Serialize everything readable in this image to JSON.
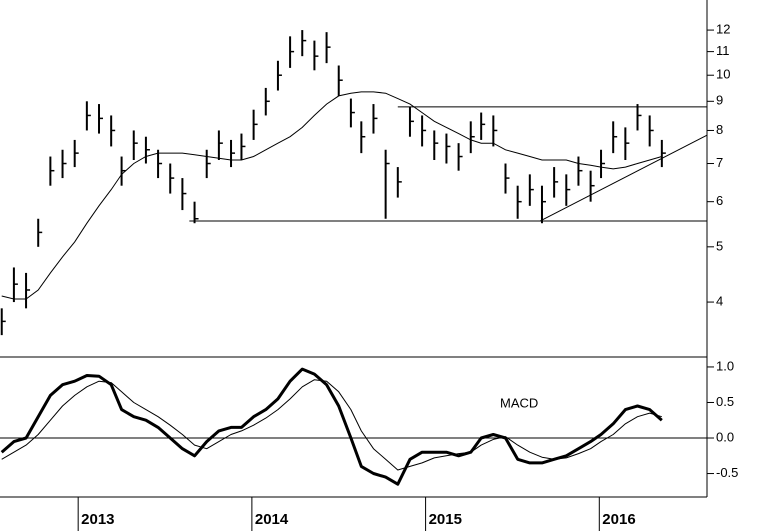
{
  "chart_data": [
    {
      "type": "ohlc",
      "log": true,
      "x": [
        2012.56,
        2012.63,
        2012.7,
        2012.77,
        2012.84,
        2012.91,
        2012.98,
        2013.05,
        2013.12,
        2013.19,
        2013.25,
        2013.32,
        2013.39,
        2013.46,
        2013.53,
        2013.6,
        2013.67,
        2013.74,
        2013.81,
        2013.88,
        2013.94,
        2014.01,
        2014.08,
        2014.15,
        2014.22,
        2014.29,
        2014.36,
        2014.43,
        2014.5,
        2014.57,
        2014.63,
        2014.7,
        2014.77,
        2014.84,
        2014.91,
        2014.98,
        2015.05,
        2015.12,
        2015.19,
        2015.26,
        2015.32,
        2015.39,
        2015.46,
        2015.53,
        2015.6,
        2015.67,
        2015.74,
        2015.81,
        2015.88,
        2015.95,
        2016.01,
        2016.08,
        2016.15,
        2016.22,
        2016.29,
        2016.36
      ],
      "high": [
        3.9,
        4.6,
        4.5,
        5.6,
        7.2,
        7.4,
        7.7,
        9.0,
        8.9,
        8.5,
        7.2,
        8.0,
        7.8,
        7.4,
        7.0,
        6.6,
        6.0,
        7.4,
        8.0,
        7.7,
        7.9,
        8.7,
        9.5,
        10.6,
        11.7,
        12.0,
        11.5,
        11.9,
        10.4,
        9.1,
        8.3,
        8.9,
        7.4,
        6.9,
        8.8,
        8.5,
        8.0,
        7.9,
        7.6,
        8.3,
        8.6,
        8.5,
        7.0,
        6.4,
        6.7,
        6.4,
        6.9,
        6.7,
        7.2,
        6.8,
        7.4,
        8.3,
        8.1,
        8.9,
        8.5,
        7.7
      ],
      "low": [
        3.5,
        4.0,
        3.9,
        5.0,
        6.4,
        6.6,
        6.9,
        8.0,
        7.9,
        7.5,
        6.4,
        7.1,
        7.0,
        6.6,
        6.2,
        5.8,
        5.5,
        6.6,
        7.1,
        6.9,
        7.1,
        7.7,
        8.5,
        9.4,
        10.3,
        10.8,
        10.2,
        10.5,
        9.2,
        8.1,
        7.3,
        7.9,
        5.6,
        6.1,
        7.8,
        7.5,
        7.1,
        7.0,
        6.8,
        7.3,
        7.7,
        7.5,
        6.2,
        5.6,
        5.9,
        5.5,
        6.1,
        5.9,
        6.4,
        6.0,
        6.6,
        7.3,
        7.1,
        8.0,
        7.5,
        6.9
      ],
      "close": [
        3.7,
        4.3,
        4.2,
        5.3,
        6.8,
        7.0,
        7.3,
        8.5,
        8.4,
        8.0,
        6.8,
        7.6,
        7.4,
        7.0,
        6.6,
        6.2,
        5.6,
        7.0,
        7.6,
        7.3,
        7.5,
        8.2,
        9.0,
        10.0,
        11.0,
        11.5,
        10.8,
        11.2,
        9.8,
        8.6,
        7.8,
        8.4,
        7.0,
        6.5,
        8.3,
        8.0,
        7.6,
        7.5,
        7.2,
        7.8,
        8.2,
        8.0,
        6.6,
        6.0,
        6.3,
        6.0,
        6.5,
        6.3,
        6.8,
        6.4,
        7.0,
        7.8,
        7.6,
        8.5,
        8.0,
        7.3
      ],
      "color": "#000000",
      "series": [
        {
          "color": "#000000",
          "values": [
            4.1,
            4.05,
            4.05,
            4.2,
            4.5,
            4.8,
            5.1,
            5.5,
            5.9,
            6.3,
            6.7,
            7.0,
            7.2,
            7.3,
            7.3,
            7.3,
            7.25,
            7.2,
            7.15,
            7.1,
            7.1,
            7.2,
            7.4,
            7.6,
            7.8,
            8.1,
            8.5,
            8.9,
            9.2,
            9.3,
            9.35,
            9.35,
            9.3,
            9.1,
            8.9,
            8.6,
            8.3,
            8.1,
            7.9,
            7.7,
            7.6,
            7.6,
            7.4,
            7.3,
            7.2,
            7.1,
            7.1,
            7.1,
            7.0,
            6.95,
            6.9,
            6.85,
            6.9,
            7.0,
            7.1,
            7.2
          ]
        }
      ],
      "lines": [
        {
          "x": [
            2013.64,
            2016.62
          ],
          "values": [
            5.55,
            5.55
          ]
        },
        {
          "x": [
            2014.84,
            2016.62
          ],
          "values": [
            8.8,
            8.8
          ]
        },
        {
          "x": [
            2015.66,
            2016.62
          ],
          "values": [
            5.55,
            7.85
          ]
        }
      ],
      "xlim": [
        2012.55,
        2016.62
      ],
      "ylim": [
        3.23,
        13.55
      ],
      "yticks": [
        4,
        5,
        6,
        7,
        8,
        9,
        10,
        11,
        12
      ]
    },
    {
      "type": "line",
      "annotation": "MACD",
      "x": [
        2012.56,
        2012.63,
        2012.7,
        2012.77,
        2012.84,
        2012.91,
        2012.98,
        2013.05,
        2013.12,
        2013.19,
        2013.25,
        2013.32,
        2013.39,
        2013.46,
        2013.53,
        2013.6,
        2013.67,
        2013.74,
        2013.81,
        2013.88,
        2013.94,
        2014.01,
        2014.08,
        2014.15,
        2014.22,
        2014.29,
        2014.36,
        2014.43,
        2014.5,
        2014.57,
        2014.63,
        2014.7,
        2014.77,
        2014.84,
        2014.91,
        2014.98,
        2015.05,
        2015.12,
        2015.19,
        2015.26,
        2015.32,
        2015.39,
        2015.46,
        2015.53,
        2015.6,
        2015.67,
        2015.74,
        2015.81,
        2015.88,
        2015.95,
        2016.01,
        2016.08,
        2016.15,
        2016.22,
        2016.29,
        2016.36
      ],
      "series": [
        {
          "color": "#000000",
          "values": [
            -0.2,
            -0.05,
            0.0,
            0.3,
            0.6,
            0.75,
            0.8,
            0.88,
            0.87,
            0.75,
            0.4,
            0.3,
            0.25,
            0.15,
            0.0,
            -0.15,
            -0.25,
            -0.05,
            0.1,
            0.15,
            0.15,
            0.3,
            0.4,
            0.55,
            0.8,
            0.97,
            0.9,
            0.75,
            0.45,
            0.0,
            -0.4,
            -0.5,
            -0.55,
            -0.65,
            -0.3,
            -0.2,
            -0.2,
            -0.2,
            -0.25,
            -0.2,
            0.0,
            0.05,
            0.0,
            -0.3,
            -0.35,
            -0.35,
            -0.3,
            -0.25,
            -0.15,
            -0.05,
            0.05,
            0.2,
            0.4,
            0.45,
            0.4,
            0.25
          ]
        },
        {
          "color": "#000000",
          "values": [
            -0.3,
            -0.2,
            -0.1,
            0.05,
            0.25,
            0.45,
            0.6,
            0.72,
            0.8,
            0.78,
            0.65,
            0.5,
            0.4,
            0.3,
            0.18,
            0.05,
            -0.1,
            -0.15,
            -0.05,
            0.05,
            0.1,
            0.18,
            0.28,
            0.4,
            0.55,
            0.72,
            0.82,
            0.8,
            0.65,
            0.4,
            0.1,
            -0.15,
            -0.3,
            -0.45,
            -0.4,
            -0.35,
            -0.28,
            -0.25,
            -0.22,
            -0.2,
            -0.1,
            -0.02,
            0.02,
            -0.1,
            -0.2,
            -0.27,
            -0.3,
            -0.28,
            -0.22,
            -0.15,
            -0.05,
            0.05,
            0.2,
            0.3,
            0.35,
            0.3
          ]
        }
      ],
      "zero_line": 0,
      "xlim": [
        2012.55,
        2016.62
      ],
      "ylim": [
        -0.83,
        1.14
      ],
      "yticks": [
        {
          "value": 1.0,
          "label": "1.0"
        },
        {
          "value": 0.5,
          "label": "0.5"
        },
        {
          "value": 0.0,
          "label": "0.0"
        },
        {
          "value": -0.5,
          "label": "-0.5"
        }
      ],
      "xticks": [
        2013,
        2014,
        2015,
        2016
      ]
    }
  ]
}
